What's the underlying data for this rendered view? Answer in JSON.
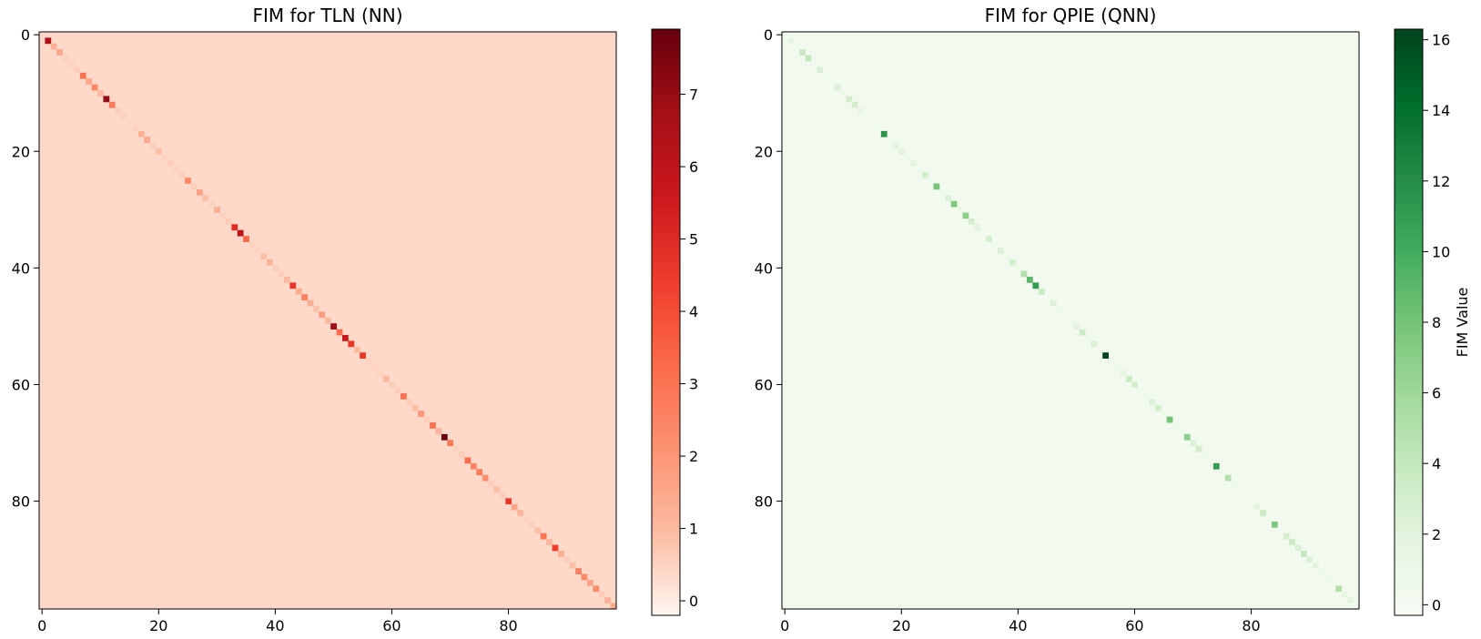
{
  "chart_data": [
    {
      "type": "heatmap",
      "title": "FIM for TLN (NN)",
      "size": 99,
      "colormap": "Reds",
      "color_range": [
        -0.2,
        7.9
      ],
      "colors": [
        "#fff5f0",
        "#fcbba1",
        "#fc9272",
        "#fb6a4a",
        "#ef3b2c",
        "#cb181d",
        "#a50f15",
        "#67000d"
      ],
      "background_value": 0.35,
      "xticks": [
        0,
        20,
        40,
        60,
        80
      ],
      "yticks": [
        0,
        20,
        40,
        60,
        80
      ],
      "colorbar_ticks": [
        0,
        1,
        2,
        3,
        4,
        5,
        6,
        7
      ],
      "colorbar_label": "",
      "diagonal_values": [
        0.4,
        6.5,
        1.2,
        1.5,
        0.5,
        0.5,
        0.6,
        3.0,
        1.5,
        2.4,
        1.0,
        7.0,
        2.8,
        0.6,
        0.5,
        0.4,
        0.5,
        1.3,
        1.5,
        0.6,
        0.9,
        0.5,
        0.6,
        0.5,
        0.6,
        2.4,
        0.6,
        1.6,
        0.9,
        0.5,
        1.3,
        0.5,
        0.6,
        4.9,
        6.1,
        3.3,
        0.5,
        0.5,
        0.9,
        1.2,
        0.6,
        0.6,
        1.0,
        4.6,
        1.4,
        2.6,
        1.3,
        0.8,
        1.8,
        1.0,
        6.8,
        3.2,
        5.7,
        4.6,
        1.0,
        4.6,
        0.5,
        0.5,
        0.5,
        1.0,
        0.6,
        0.6,
        3.0,
        0.6,
        0.9,
        2.0,
        0.6,
        3.0,
        1.2,
        7.9,
        2.8,
        0.5,
        0.6,
        3.2,
        2.6,
        2.8,
        2.2,
        0.6,
        0.9,
        0.6,
        4.6,
        1.6,
        1.1,
        0.5,
        0.6,
        0.9,
        3.0,
        1.1,
        4.4,
        1.3,
        0.6,
        0.9,
        2.6,
        2.4,
        1.6,
        2.3,
        0.6,
        1.2,
        1.4
      ]
    },
    {
      "type": "heatmap",
      "title": "FIM for QPIE (QNN)",
      "size": 99,
      "colormap": "Greens",
      "color_range": [
        -0.3,
        16.3
      ],
      "colors": [
        "#f7fcf5",
        "#e5f5e0",
        "#c7e9c0",
        "#a1d99b",
        "#74c476",
        "#41ab5d",
        "#238b45",
        "#006d2c",
        "#00441b"
      ],
      "background_value": 0.3,
      "xticks": [
        0,
        20,
        40,
        60,
        80
      ],
      "yticks": [
        0,
        20,
        40,
        60,
        80
      ],
      "colorbar_ticks": [
        0,
        2,
        4,
        6,
        8,
        10,
        12,
        14,
        16
      ],
      "colorbar_label": "FIM Value",
      "diagonal_values": [
        0.5,
        1.5,
        0.5,
        3.5,
        4.0,
        0.5,
        2.5,
        0.5,
        0.5,
        2.5,
        1.0,
        3.0,
        3.0,
        1.5,
        0.5,
        0.5,
        0.5,
        11.5,
        0.5,
        2.0,
        2.0,
        0.5,
        2.0,
        0.5,
        3.0,
        0.5,
        8.0,
        0.5,
        2.5,
        7.5,
        1.0,
        7.0,
        3.0,
        2.0,
        0.5,
        3.0,
        0.5,
        2.5,
        1.0,
        3.0,
        1.0,
        5.0,
        9.0,
        11.0,
        3.5,
        0.5,
        2.5,
        0.5,
        0.5,
        0.5,
        2.0,
        3.5,
        0.5,
        2.5,
        0.5,
        16.3,
        0.5,
        0.5,
        1.5,
        3.5,
        3.0,
        0.5,
        0.5,
        2.5,
        3.0,
        1.0,
        8.0,
        0.5,
        0.5,
        7.0,
        2.5,
        3.0,
        0.5,
        0.5,
        11.0,
        1.0,
        5.0,
        0.5,
        0.5,
        0.5,
        0.5,
        2.0,
        3.5,
        1.0,
        7.5,
        0.5,
        3.0,
        3.5,
        2.5,
        4.0,
        2.5,
        2.0,
        0.5,
        0.5,
        1.0,
        5.0,
        1.5,
        2.0,
        0.5
      ]
    }
  ]
}
